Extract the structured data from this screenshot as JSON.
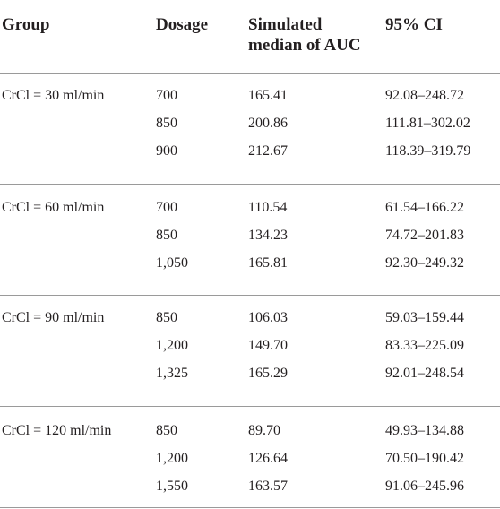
{
  "table": {
    "headers": {
      "group": "Group",
      "dosage": "Dosage",
      "auc_line1": "Simulated",
      "auc_line2": "median of AUC",
      "ci": "95% CI"
    },
    "groups": [
      {
        "label": "CrCl = 30 ml/min",
        "rows": [
          {
            "dosage": "700",
            "auc": "165.41",
            "ci": "92.08–248.72"
          },
          {
            "dosage": "850",
            "auc": "200.86",
            "ci": "111.81–302.02"
          },
          {
            "dosage": "900",
            "auc": "212.67",
            "ci": "118.39–319.79"
          }
        ]
      },
      {
        "label": "CrCl = 60 ml/min",
        "rows": [
          {
            "dosage": "700",
            "auc": "110.54",
            "ci": "61.54–166.22"
          },
          {
            "dosage": "850",
            "auc": "134.23",
            "ci": "74.72–201.83"
          },
          {
            "dosage": "1,050",
            "auc": "165.81",
            "ci": "92.30–249.32"
          }
        ]
      },
      {
        "label": "CrCl = 90 ml/min",
        "rows": [
          {
            "dosage": "850",
            "auc": "106.03",
            "ci": "59.03–159.44"
          },
          {
            "dosage": "1,200",
            "auc": "149.70",
            "ci": "83.33–225.09"
          },
          {
            "dosage": "1,325",
            "auc": "165.29",
            "ci": "92.01–248.54"
          }
        ]
      },
      {
        "label": "CrCl = 120 ml/min",
        "rows": [
          {
            "dosage": "850",
            "auc": "89.70",
            "ci": "49.93–134.88"
          },
          {
            "dosage": "1,200",
            "auc": "126.64",
            "ci": "70.50–190.42"
          },
          {
            "dosage": "1,550",
            "auc": "163.57",
            "ci": "91.06–245.96"
          }
        ]
      }
    ]
  }
}
